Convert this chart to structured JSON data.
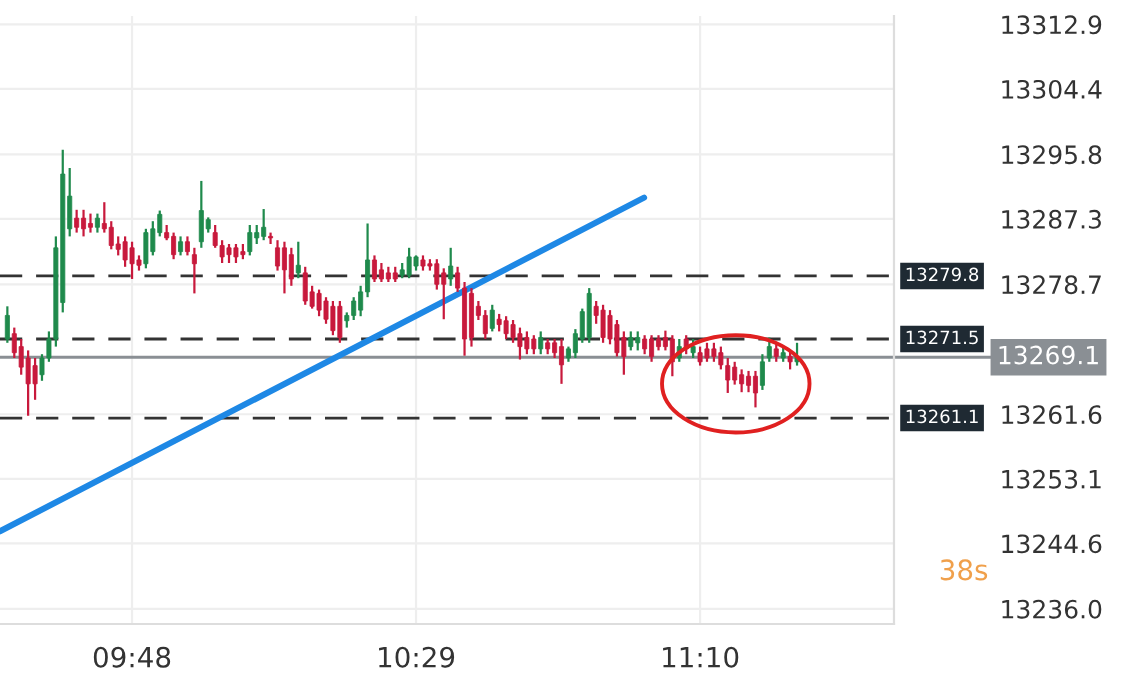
{
  "chart_data": {
    "type": "candlestick",
    "x": [
      9.5,
      9.5167,
      9.5333,
      9.55,
      9.5667,
      9.5833,
      9.6,
      9.6167,
      9.6333,
      9.65,
      9.6667,
      9.6833,
      9.7,
      9.7167,
      9.7333,
      9.75,
      9.7667,
      9.7833,
      9.8,
      9.8167,
      9.8333,
      9.85,
      9.8667,
      9.8833,
      9.9,
      9.9167,
      9.9333,
      9.95,
      9.9667,
      9.9833,
      10.0,
      10.0167,
      10.0333,
      10.05,
      10.0667,
      10.0833,
      10.1,
      10.1167,
      10.1333,
      10.15,
      10.1667,
      10.1833,
      10.2,
      10.2167,
      10.2333,
      10.25,
      10.2667,
      10.2833,
      10.3,
      10.3167,
      10.3333,
      10.35,
      10.3667,
      10.3833,
      10.4,
      10.4167,
      10.4333,
      10.45,
      10.4667,
      10.4833,
      10.5,
      10.5167,
      10.5333,
      10.55,
      10.5667,
      10.5833,
      10.6,
      10.6167,
      10.6333,
      10.65,
      10.6667,
      10.6833,
      10.7,
      10.7167,
      10.7333,
      10.75,
      10.7667,
      10.7833,
      10.8,
      10.8167,
      10.8333,
      10.85,
      10.8667,
      10.8833,
      10.9,
      10.9167,
      10.9333,
      10.95,
      10.9667,
      10.9833,
      11.0,
      11.0167,
      11.0333,
      11.05,
      11.0667,
      11.0833,
      11.1,
      11.1167,
      11.1333,
      11.15,
      11.1667,
      11.1833,
      11.2,
      11.2167,
      11.2333,
      11.25,
      11.2667,
      11.2833,
      11.3,
      11.3167,
      11.3333,
      11.35,
      11.3667,
      11.3833,
      11.4
    ],
    "ohlc": [
      [
        13271.5,
        13275.8,
        13271.0,
        13274.6
      ],
      [
        13272.2,
        13273.0,
        13269.0,
        13269.7
      ],
      [
        13270.5,
        13271.5,
        13266.8,
        13267.8
      ],
      [
        13269.0,
        13270.0,
        13261.4,
        13265.6
      ],
      [
        13268.0,
        13269.0,
        13263.5,
        13265.6
      ],
      [
        13266.8,
        13269.5,
        13266.0,
        13269.0
      ],
      [
        13269.0,
        13272.5,
        13268.5,
        13271.5
      ],
      [
        13271.5,
        13285.0,
        13270.5,
        13283.5
      ],
      [
        13276.3,
        13296.4,
        13275.0,
        13293.2
      ],
      [
        13286.0,
        13294.0,
        13285.0,
        13290.3
      ],
      [
        13287.4,
        13288.5,
        13285.5,
        13286.2
      ],
      [
        13287.4,
        13288.5,
        13285.0,
        13286.0
      ],
      [
        13286.7,
        13288.0,
        13285.5,
        13286.2
      ],
      [
        13286.2,
        13288.0,
        13285.5,
        13287.4
      ],
      [
        13286.7,
        13289.5,
        13285.5,
        13286.0
      ],
      [
        13286.2,
        13287.0,
        13283.3,
        13283.8
      ],
      [
        13284.0,
        13285.0,
        13282.5,
        13283.3
      ],
      [
        13284.3,
        13285.0,
        13281.0,
        13281.9
      ],
      [
        13283.5,
        13284.3,
        13279.4,
        13281.4
      ],
      [
        13281.9,
        13282.5,
        13280.5,
        13281.2
      ],
      [
        13281.4,
        13286.0,
        13280.8,
        13285.5
      ],
      [
        13283.0,
        13287.0,
        13282.5,
        13286.0
      ],
      [
        13285.5,
        13288.4,
        13285.0,
        13287.9
      ],
      [
        13285.5,
        13286.5,
        13284.5,
        13284.8
      ],
      [
        13285.0,
        13285.5,
        13282.0,
        13282.6
      ],
      [
        13283.0,
        13285.0,
        13282.5,
        13284.3
      ],
      [
        13284.3,
        13285.0,
        13282.5,
        13283.0
      ],
      [
        13282.6,
        13283.5,
        13277.5,
        13281.4
      ],
      [
        13284.3,
        13292.3,
        13283.5,
        13288.4
      ],
      [
        13286.0,
        13287.5,
        13285.5,
        13287.2
      ],
      [
        13285.5,
        13286.5,
        13283.5,
        13283.8
      ],
      [
        13283.8,
        13284.5,
        13281.5,
        13282.3
      ],
      [
        13283.5,
        13284.0,
        13281.5,
        13282.6
      ],
      [
        13283.5,
        13284.0,
        13281.5,
        13282.3
      ],
      [
        13283.0,
        13284.0,
        13282.0,
        13282.6
      ],
      [
        13283.0,
        13286.5,
        13282.5,
        13285.5
      ],
      [
        13284.8,
        13286.5,
        13284.0,
        13285.5
      ],
      [
        13285.0,
        13288.6,
        13284.5,
        13286.2
      ],
      [
        13285.0,
        13285.5,
        13284.0,
        13284.8
      ],
      [
        13283.5,
        13284.5,
        13280.5,
        13281.1
      ],
      [
        13283.5,
        13284.3,
        13277.5,
        13280.6
      ],
      [
        13282.6,
        13283.5,
        13278.5,
        13279.4
      ],
      [
        13280.2,
        13284.3,
        13279.5,
        13281.2
      ],
      [
        13280.2,
        13281.0,
        13276.0,
        13276.5
      ],
      [
        13277.7,
        13278.5,
        13275.5,
        13275.8
      ],
      [
        13277.5,
        13278.0,
        13274.5,
        13275.3
      ],
      [
        13276.5,
        13277.0,
        13273.5,
        13274.1
      ],
      [
        13275.8,
        13276.5,
        13272.0,
        13272.6
      ],
      [
        13275.8,
        13276.5,
        13271.0,
        13271.7
      ],
      [
        13273.9,
        13275.0,
        13273.0,
        13274.6
      ],
      [
        13274.6,
        13277.0,
        13274.0,
        13276.5
      ],
      [
        13275.3,
        13278.5,
        13274.5,
        13277.7
      ],
      [
        13277.7,
        13286.7,
        13277.0,
        13281.9
      ],
      [
        13281.9,
        13282.5,
        13279.0,
        13279.4
      ],
      [
        13280.6,
        13281.5,
        13279.0,
        13279.4
      ],
      [
        13280.2,
        13281.0,
        13279.0,
        13279.4
      ],
      [
        13280.2,
        13281.0,
        13279.0,
        13279.4
      ],
      [
        13279.9,
        13281.5,
        13279.5,
        13280.6
      ],
      [
        13279.9,
        13283.5,
        13279.5,
        13282.3
      ],
      [
        13281.1,
        13282.5,
        13280.5,
        13282.3
      ],
      [
        13281.9,
        13282.5,
        13280.5,
        13281.1
      ],
      [
        13281.4,
        13282.0,
        13280.5,
        13281.1
      ],
      [
        13281.4,
        13282.0,
        13278.0,
        13278.7
      ],
      [
        13280.2,
        13280.8,
        13274.1,
        13278.7
      ],
      [
        13279.4,
        13283.5,
        13278.5,
        13281.1
      ],
      [
        13280.2,
        13281.0,
        13277.7,
        13278.2
      ],
      [
        13278.2,
        13279.0,
        13269.3,
        13271.5
      ],
      [
        13277.5,
        13278.2,
        13270.5,
        13271.7
      ],
      [
        13275.8,
        13276.5,
        13274.0,
        13274.6
      ],
      [
        13274.6,
        13275.3,
        13271.5,
        13272.2
      ],
      [
        13272.9,
        13276.0,
        13272.5,
        13275.3
      ],
      [
        13274.1,
        13274.8,
        13272.5,
        13273.4
      ],
      [
        13273.9,
        13274.5,
        13271.5,
        13272.2
      ],
      [
        13273.4,
        13274.0,
        13271.0,
        13271.7
      ],
      [
        13272.2,
        13273.0,
        13268.8,
        13270.5
      ],
      [
        13271.7,
        13272.5,
        13269.5,
        13270.2
      ],
      [
        13271.5,
        13272.0,
        13269.5,
        13270.2
      ],
      [
        13270.2,
        13272.5,
        13269.5,
        13271.7
      ],
      [
        13271.0,
        13271.5,
        13269.5,
        13270.2
      ],
      [
        13271.0,
        13271.5,
        13269.0,
        13269.7
      ],
      [
        13270.5,
        13271.5,
        13265.6,
        13268.1
      ],
      [
        13269.0,
        13270.5,
        13268.5,
        13270.2
      ],
      [
        13269.7,
        13272.8,
        13269.0,
        13272.2
      ],
      [
        13271.5,
        13275.5,
        13271.0,
        13275.1
      ],
      [
        13271.7,
        13278.2,
        13271.0,
        13277.5
      ],
      [
        13275.8,
        13276.5,
        13273.5,
        13274.6
      ],
      [
        13275.3,
        13276.0,
        13271.0,
        13271.7
      ],
      [
        13274.6,
        13275.3,
        13270.8,
        13271.5
      ],
      [
        13273.4,
        13274.0,
        13269.2,
        13269.7
      ],
      [
        13271.7,
        13272.5,
        13266.8,
        13269.2
      ],
      [
        13270.5,
        13272.5,
        13270.0,
        13271.7
      ],
      [
        13271.0,
        13272.5,
        13270.0,
        13271.7
      ],
      [
        13271.5,
        13272.0,
        13269.5,
        13270.2
      ],
      [
        13271.5,
        13272.0,
        13268.5,
        13269.2
      ],
      [
        13271.5,
        13272.0,
        13270.0,
        13270.5
      ],
      [
        13271.7,
        13272.6,
        13270.0,
        13270.5
      ],
      [
        13271.5,
        13272.0,
        13266.6,
        13268.5
      ],
      [
        13269.0,
        13271.5,
        13268.5,
        13270.5
      ],
      [
        13271.5,
        13272.0,
        13269.5,
        13270.2
      ],
      [
        13269.7,
        13271.5,
        13269.0,
        13270.5
      ],
      [
        13269.7,
        13270.5,
        13268.0,
        13268.5
      ],
      [
        13270.2,
        13271.0,
        13268.5,
        13269.0
      ],
      [
        13270.2,
        13271.0,
        13268.5,
        13269.2
      ],
      [
        13269.7,
        13270.5,
        13267.5,
        13268.1
      ],
      [
        13268.0,
        13269.0,
        13264.4,
        13266.1
      ],
      [
        13267.8,
        13268.5,
        13265.5,
        13266.1
      ],
      [
        13266.8,
        13267.5,
        13264.5,
        13265.6
      ],
      [
        13266.6,
        13267.3,
        13264.5,
        13265.4
      ],
      [
        13266.6,
        13267.3,
        13262.5,
        13264.4
      ],
      [
        13265.4,
        13269.5,
        13264.8,
        13268.5
      ],
      [
        13269.0,
        13271.7,
        13268.5,
        13270.5
      ],
      [
        13270.2,
        13271.0,
        13268.5,
        13269.2
      ],
      [
        13269.0,
        13270.5,
        13268.5,
        13269.7
      ],
      [
        13269.2,
        13270.0,
        13267.5,
        13268.5
      ],
      [
        13268.5,
        13271.0,
        13268.0,
        13269.1
      ]
    ],
    "colors": [
      "#1f8a4c",
      "#c8193c",
      "#c8193c",
      "#c8193c",
      "#c8193c",
      "#1f8a4c",
      "#1f8a4c",
      "#1f8a4c",
      "#1f8a4c",
      "#1f8a4c",
      "#c8193c",
      "#c8193c",
      "#c8193c",
      "#1f8a4c",
      "#c8193c",
      "#c8193c",
      "#c8193c",
      "#c8193c",
      "#c8193c",
      "#c8193c",
      "#1f8a4c",
      "#1f8a4c",
      "#1f8a4c",
      "#c8193c",
      "#c8193c",
      "#1f8a4c",
      "#c8193c",
      "#c8193c",
      "#1f8a4c",
      "#1f8a4c",
      "#c8193c",
      "#c8193c",
      "#c8193c",
      "#c8193c",
      "#c8193c",
      "#1f8a4c",
      "#1f8a4c",
      "#1f8a4c",
      "#c8193c",
      "#c8193c",
      "#c8193c",
      "#c8193c",
      "#1f8a4c",
      "#c8193c",
      "#c8193c",
      "#c8193c",
      "#c8193c",
      "#c8193c",
      "#c8193c",
      "#1f8a4c",
      "#1f8a4c",
      "#1f8a4c",
      "#1f8a4c",
      "#c8193c",
      "#c8193c",
      "#c8193c",
      "#c8193c",
      "#1f8a4c",
      "#1f8a4c",
      "#1f8a4c",
      "#c8193c",
      "#c8193c",
      "#c8193c",
      "#c8193c",
      "#1f8a4c",
      "#c8193c",
      "#c8193c",
      "#c8193c",
      "#c8193c",
      "#c8193c",
      "#1f8a4c",
      "#c8193c",
      "#c8193c",
      "#c8193c",
      "#c8193c",
      "#c8193c",
      "#c8193c",
      "#1f8a4c",
      "#c8193c",
      "#c8193c",
      "#c8193c",
      "#1f8a4c",
      "#1f8a4c",
      "#1f8a4c",
      "#1f8a4c",
      "#c8193c",
      "#c8193c",
      "#c8193c",
      "#c8193c",
      "#c8193c",
      "#1f8a4c",
      "#1f8a4c",
      "#c8193c",
      "#c8193c",
      "#c8193c",
      "#c8193c",
      "#c8193c",
      "#1f8a4c",
      "#c8193c",
      "#1f8a4c",
      "#c8193c",
      "#c8193c",
      "#c8193c",
      "#c8193c",
      "#c8193c",
      "#c8193c",
      "#c8193c",
      "#c8193c",
      "#c8193c",
      "#1f8a4c",
      "#1f8a4c",
      "#c8193c",
      "#1f8a4c",
      "#c8193c",
      "#1f8a4c"
    ],
    "series": [
      {
        "type": "line",
        "x": [
          9.4823,
          11.032
        ],
        "values": [
          13246.2,
          13290.1
        ],
        "color": "#1e88e5"
      }
    ],
    "xlim": [
      9.4823,
      11.6333
    ],
    "xticks": [
      {
        "value": 9.8,
        "label": "09:48"
      },
      {
        "value": 10.4833,
        "label": "10:29"
      },
      {
        "value": 11.1667,
        "label": "11:10"
      }
    ],
    "ylim": [
      13234,
      13314
    ],
    "yticks": [
      13312.9,
      13304.4,
      13295.8,
      13287.3,
      13278.7,
      13261.6,
      13253.1,
      13244.6,
      {
        "value": 13236,
        "label": "13236.0"
      }
    ],
    "ref_lines": [
      {
        "axis": "y",
        "value": 13279.8,
        "label": "13279.8",
        "color": "#333333",
        "line_style": "dashed"
      },
      {
        "axis": "y",
        "value": 13271.5,
        "label": "13271.5",
        "color": "#333333",
        "line_style": "dashed"
      },
      {
        "axis": "y",
        "value": 13269.1,
        "label": "13269.1",
        "color": "#8a8f94",
        "line_style": "solid"
      },
      {
        "axis": "y",
        "value": 13261.1,
        "label": "13261.1",
        "color": "#333333",
        "line_style": "dashed"
      }
    ],
    "annotations": [
      "38s"
    ],
    "grid": true
  }
}
